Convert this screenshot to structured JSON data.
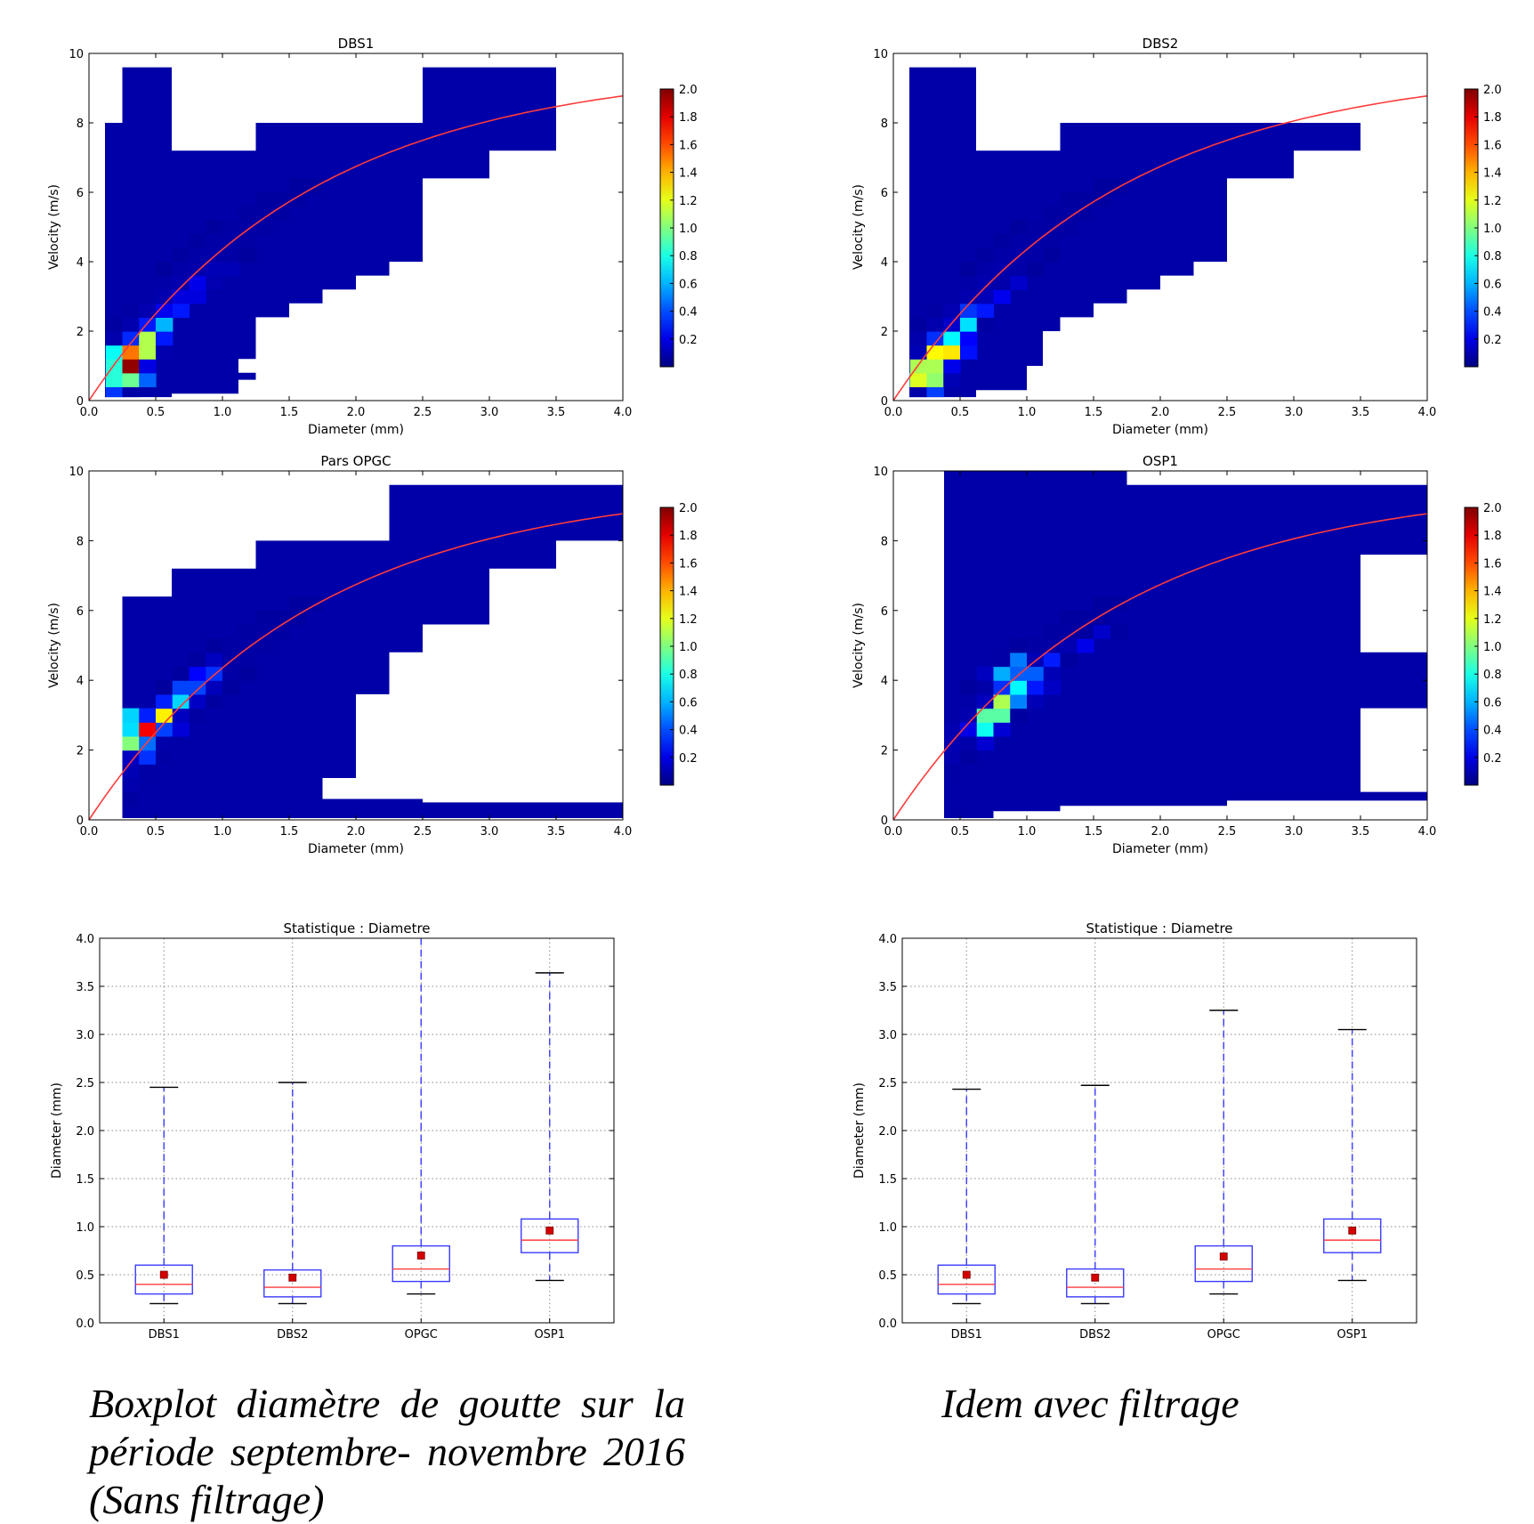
{
  "chart_data": [
    {
      "type": "heatmap",
      "title": "DBS1",
      "xlabel": "Diameter (mm)",
      "ylabel": "Velocity (m/s)",
      "xlim": [
        0,
        4
      ],
      "ylim": [
        0,
        10
      ],
      "xticks": [
        "0.0",
        "0.5",
        "1.0",
        "1.5",
        "2.0",
        "2.5",
        "3.0",
        "3.5",
        "4.0"
      ],
      "yticks": [
        "0",
        "2",
        "4",
        "6",
        "8",
        "10"
      ],
      "colorbar": {
        "min": 0,
        "max": 2.0,
        "ticks": [
          "0.2",
          "0.4",
          "0.6",
          "0.8",
          "1.0",
          "1.2",
          "1.4",
          "1.6",
          "1.8",
          "2.0"
        ]
      },
      "fit_curve": "red line from (0,0) rising to about 8.8 m/s at 4.0 mm",
      "outline": [
        [
          0.12,
          0.1
        ],
        [
          0.12,
          8.0
        ],
        [
          0.25,
          8.0
        ],
        [
          0.25,
          9.6
        ],
        [
          0.62,
          9.6
        ],
        [
          0.62,
          7.2
        ],
        [
          1.25,
          7.2
        ],
        [
          1.25,
          8.0
        ],
        [
          2.5,
          8.0
        ],
        [
          2.5,
          9.6
        ],
        [
          3.5,
          9.6
        ],
        [
          3.5,
          7.2
        ],
        [
          3.0,
          7.2
        ],
        [
          3.0,
          6.4
        ],
        [
          2.5,
          6.4
        ],
        [
          2.5,
          4.0
        ],
        [
          2.25,
          4.0
        ],
        [
          2.25,
          3.6
        ],
        [
          2.0,
          3.6
        ],
        [
          2.0,
          3.2
        ],
        [
          1.75,
          3.2
        ],
        [
          1.75,
          2.8
        ],
        [
          1.5,
          2.8
        ],
        [
          1.5,
          2.4
        ],
        [
          1.25,
          2.4
        ],
        [
          1.25,
          1.2
        ],
        [
          1.12,
          1.2
        ],
        [
          1.12,
          0.8
        ],
        [
          1.25,
          0.8
        ],
        [
          1.25,
          0.6
        ],
        [
          1.12,
          0.6
        ],
        [
          1.12,
          0.2
        ],
        [
          0.62,
          0.2
        ],
        [
          0.62,
          0.1
        ]
      ],
      "hotspots": [
        [
          0.3,
          1.0,
          2.0
        ],
        [
          0.42,
          1.6,
          1.9
        ],
        [
          0.3,
          1.45,
          1.6
        ],
        [
          0.2,
          1.2,
          1.3
        ],
        [
          0.2,
          0.8,
          1.4
        ],
        [
          0.35,
          0.7,
          1.3
        ],
        [
          0.5,
          2.0,
          0.8
        ],
        [
          0.55,
          2.3,
          0.7
        ],
        [
          0.65,
          2.7,
          0.4
        ],
        [
          0.2,
          0.4,
          0.6
        ],
        [
          0.75,
          3.0,
          0.3
        ],
        [
          0.85,
          3.4,
          0.25
        ],
        [
          1.0,
          3.9,
          0.2
        ]
      ]
    },
    {
      "type": "heatmap",
      "title": "DBS2",
      "xlabel": "Diameter (mm)",
      "ylabel": "Velocity (m/s)",
      "xlim": [
        0,
        4
      ],
      "ylim": [
        0,
        10
      ],
      "xticks": [
        "0.0",
        "0.5",
        "1.0",
        "1.5",
        "2.0",
        "2.5",
        "3.0",
        "3.5",
        "4.0"
      ],
      "yticks": [
        "0",
        "2",
        "4",
        "6",
        "8",
        "10"
      ],
      "colorbar": {
        "min": 0,
        "max": 2.0,
        "ticks": [
          "0.2",
          "0.4",
          "0.6",
          "0.8",
          "1.0",
          "1.2",
          "1.4",
          "1.6",
          "1.8",
          "2.0"
        ]
      },
      "fit_curve": "red line from (0,0) rising to about 8.8 m/s at 4.0 mm",
      "outline": [
        [
          0.12,
          0.1
        ],
        [
          0.12,
          9.6
        ],
        [
          0.62,
          9.6
        ],
        [
          0.62,
          7.2
        ],
        [
          1.25,
          7.2
        ],
        [
          1.25,
          8.0
        ],
        [
          3.5,
          8.0
        ],
        [
          3.5,
          7.2
        ],
        [
          3.0,
          7.2
        ],
        [
          3.0,
          6.4
        ],
        [
          2.5,
          6.4
        ],
        [
          2.5,
          4.0
        ],
        [
          2.25,
          4.0
        ],
        [
          2.25,
          3.6
        ],
        [
          2.0,
          3.6
        ],
        [
          2.0,
          3.2
        ],
        [
          1.75,
          3.2
        ],
        [
          1.75,
          2.8
        ],
        [
          1.5,
          2.8
        ],
        [
          1.5,
          2.4
        ],
        [
          1.25,
          2.4
        ],
        [
          1.25,
          2.0
        ],
        [
          1.12,
          2.0
        ],
        [
          1.12,
          1.0
        ],
        [
          1.0,
          1.0
        ],
        [
          1.0,
          0.3
        ],
        [
          0.62,
          0.3
        ],
        [
          0.62,
          0.1
        ]
      ],
      "hotspots": [
        [
          0.25,
          0.9,
          2.0
        ],
        [
          0.35,
          1.3,
          1.7
        ],
        [
          0.45,
          1.5,
          1.5
        ],
        [
          0.15,
          0.7,
          1.6
        ],
        [
          0.3,
          0.5,
          1.2
        ],
        [
          0.4,
          1.7,
          1.0
        ],
        [
          0.55,
          2.1,
          0.8
        ],
        [
          0.55,
          2.4,
          0.6
        ],
        [
          0.65,
          2.7,
          0.4
        ],
        [
          0.8,
          3.1,
          0.25
        ],
        [
          0.9,
          3.5,
          0.2
        ]
      ]
    },
    {
      "type": "heatmap",
      "title": "Pars OPGC",
      "xlabel": "Diameter (mm)",
      "ylabel": "Velocity (m/s)",
      "xlim": [
        0,
        4
      ],
      "ylim": [
        0,
        10
      ],
      "xticks": [
        "0.0",
        "0.5",
        "1.0",
        "1.5",
        "2.0",
        "2.5",
        "3.0",
        "3.5",
        "4.0"
      ],
      "yticks": [
        "0",
        "2",
        "4",
        "6",
        "8",
        "10"
      ],
      "colorbar": {
        "min": 0,
        "max": 2.0,
        "ticks": [
          "0.2",
          "0.4",
          "0.6",
          "0.8",
          "1.0",
          "1.2",
          "1.4",
          "1.6",
          "1.8",
          "2.0"
        ]
      },
      "fit_curve": "red line from (0,0) rising to about 8.8 m/s at 4.0 mm",
      "outline": [
        [
          0.25,
          0.05
        ],
        [
          0.25,
          6.4
        ],
        [
          0.62,
          6.4
        ],
        [
          0.62,
          7.2
        ],
        [
          1.25,
          7.2
        ],
        [
          1.25,
          8.0
        ],
        [
          2.25,
          8.0
        ],
        [
          2.25,
          9.6
        ],
        [
          4.0,
          9.6
        ],
        [
          4.0,
          8.0
        ],
        [
          3.5,
          8.0
        ],
        [
          3.5,
          7.2
        ],
        [
          3.0,
          7.2
        ],
        [
          3.0,
          5.6
        ],
        [
          2.5,
          5.6
        ],
        [
          2.5,
          4.8
        ],
        [
          2.25,
          4.8
        ],
        [
          2.25,
          3.6
        ],
        [
          2.0,
          3.6
        ],
        [
          2.0,
          1.2
        ],
        [
          1.75,
          1.2
        ],
        [
          1.75,
          0.6
        ],
        [
          2.5,
          0.6
        ],
        [
          2.5,
          0.5
        ],
        [
          4.0,
          0.5
        ],
        [
          4.0,
          0.05
        ]
      ],
      "hotspots": [
        [
          0.45,
          2.6,
          1.8
        ],
        [
          0.55,
          3.0,
          1.3
        ],
        [
          0.35,
          2.2,
          1.2
        ],
        [
          0.35,
          2.9,
          0.9
        ],
        [
          0.65,
          3.4,
          0.8
        ],
        [
          0.75,
          3.7,
          0.7
        ],
        [
          0.3,
          2.6,
          0.7
        ],
        [
          0.85,
          4.0,
          0.5
        ],
        [
          0.95,
          4.3,
          0.4
        ],
        [
          0.45,
          1.9,
          0.4
        ],
        [
          0.6,
          2.7,
          0.5
        ]
      ]
    },
    {
      "type": "heatmap",
      "title": "OSP1",
      "xlabel": "Diameter (mm)",
      "ylabel": "Velocity (m/s)",
      "xlim": [
        0,
        4
      ],
      "ylim": [
        0,
        10
      ],
      "xticks": [
        "0.0",
        "0.5",
        "1.0",
        "1.5",
        "2.0",
        "2.5",
        "3.0",
        "3.5",
        "4.0"
      ],
      "yticks": [
        "0",
        "2",
        "4",
        "6",
        "8",
        "10"
      ],
      "colorbar": {
        "min": 0,
        "max": 2.0,
        "ticks": [
          "0.2",
          "0.4",
          "0.6",
          "0.8",
          "1.0",
          "1.2",
          "1.4",
          "1.6",
          "1.8",
          "2.0"
        ]
      },
      "fit_curve": "red line from (0,0) rising to about 8.8 m/s at 4.0 mm",
      "outline": [
        [
          0.38,
          0.05
        ],
        [
          0.38,
          10.0
        ],
        [
          1.75,
          10.0
        ],
        [
          1.75,
          9.6
        ],
        [
          4.0,
          9.6
        ],
        [
          4.0,
          7.6
        ],
        [
          3.5,
          7.6
        ],
        [
          3.5,
          4.8
        ],
        [
          4.0,
          4.8
        ],
        [
          4.0,
          3.2
        ],
        [
          3.5,
          3.2
        ],
        [
          3.5,
          0.8
        ],
        [
          4.0,
          0.8
        ],
        [
          4.0,
          0.55
        ],
        [
          2.5,
          0.55
        ],
        [
          2.5,
          0.4
        ],
        [
          1.25,
          0.4
        ],
        [
          1.25,
          0.25
        ],
        [
          0.75,
          0.25
        ],
        [
          0.75,
          0.05
        ]
      ],
      "hotspots": [
        [
          0.75,
          3.0,
          1.5
        ],
        [
          0.85,
          3.4,
          1.3
        ],
        [
          0.9,
          3.9,
          1.0
        ],
        [
          0.7,
          2.7,
          0.9
        ],
        [
          1.0,
          4.1,
          0.8
        ],
        [
          0.8,
          4.2,
          0.6
        ],
        [
          0.65,
          2.5,
          0.6
        ],
        [
          1.1,
          3.7,
          0.4
        ],
        [
          1.2,
          4.5,
          0.35
        ],
        [
          1.4,
          5.0,
          0.25
        ],
        [
          1.6,
          5.5,
          0.2
        ],
        [
          0.95,
          4.6,
          0.5
        ]
      ]
    },
    {
      "type": "boxplot",
      "title": "Statistique : Diametre",
      "xlabel": "",
      "ylabel": "Diameter (mm)",
      "ylim": [
        0,
        4.0
      ],
      "yticks": [
        "0.0",
        "0.5",
        "1.0",
        "1.5",
        "2.0",
        "2.5",
        "3.0",
        "3.5",
        "4.0"
      ],
      "categories": [
        "DBS1",
        "DBS2",
        "OPGC",
        "OSP1"
      ],
      "boxes": [
        {
          "whislo": 0.2,
          "q1": 0.3,
          "med": 0.4,
          "q3": 0.6,
          "whishi": 2.45,
          "mean": 0.5
        },
        {
          "whislo": 0.2,
          "q1": 0.27,
          "med": 0.37,
          "q3": 0.55,
          "whishi": 2.5,
          "mean": 0.47
        },
        {
          "whislo": 0.3,
          "q1": 0.43,
          "med": 0.56,
          "q3": 0.8,
          "whishi": 4.0,
          "mean": 0.7
        },
        {
          "whislo": 0.44,
          "q1": 0.73,
          "med": 0.86,
          "q3": 1.08,
          "whishi": 3.64,
          "mean": 0.96
        }
      ],
      "grid": true
    },
    {
      "type": "boxplot",
      "title": "Statistique : Diametre",
      "xlabel": "",
      "ylabel": "Diameter (mm)",
      "ylim": [
        0,
        4.0
      ],
      "yticks": [
        "0.0",
        "0.5",
        "1.0",
        "1.5",
        "2.0",
        "2.5",
        "3.0",
        "3.5",
        "4.0"
      ],
      "categories": [
        "DBS1",
        "DBS2",
        "OPGC",
        "OSP1"
      ],
      "boxes": [
        {
          "whislo": 0.2,
          "q1": 0.3,
          "med": 0.4,
          "q3": 0.6,
          "whishi": 2.43,
          "mean": 0.5
        },
        {
          "whislo": 0.2,
          "q1": 0.27,
          "med": 0.37,
          "q3": 0.56,
          "whishi": 2.47,
          "mean": 0.47
        },
        {
          "whislo": 0.3,
          "q1": 0.43,
          "med": 0.56,
          "q3": 0.8,
          "whishi": 3.25,
          "mean": 0.69
        },
        {
          "whislo": 0.44,
          "q1": 0.73,
          "med": 0.86,
          "q3": 1.08,
          "whishi": 3.05,
          "mean": 0.96
        }
      ],
      "grid": true
    }
  ],
  "captions": {
    "left": "Boxplot diamètre de goutte sur la période septembre- novembre 2016 (Sans filtrage)",
    "right": "Idem avec filtrage"
  }
}
